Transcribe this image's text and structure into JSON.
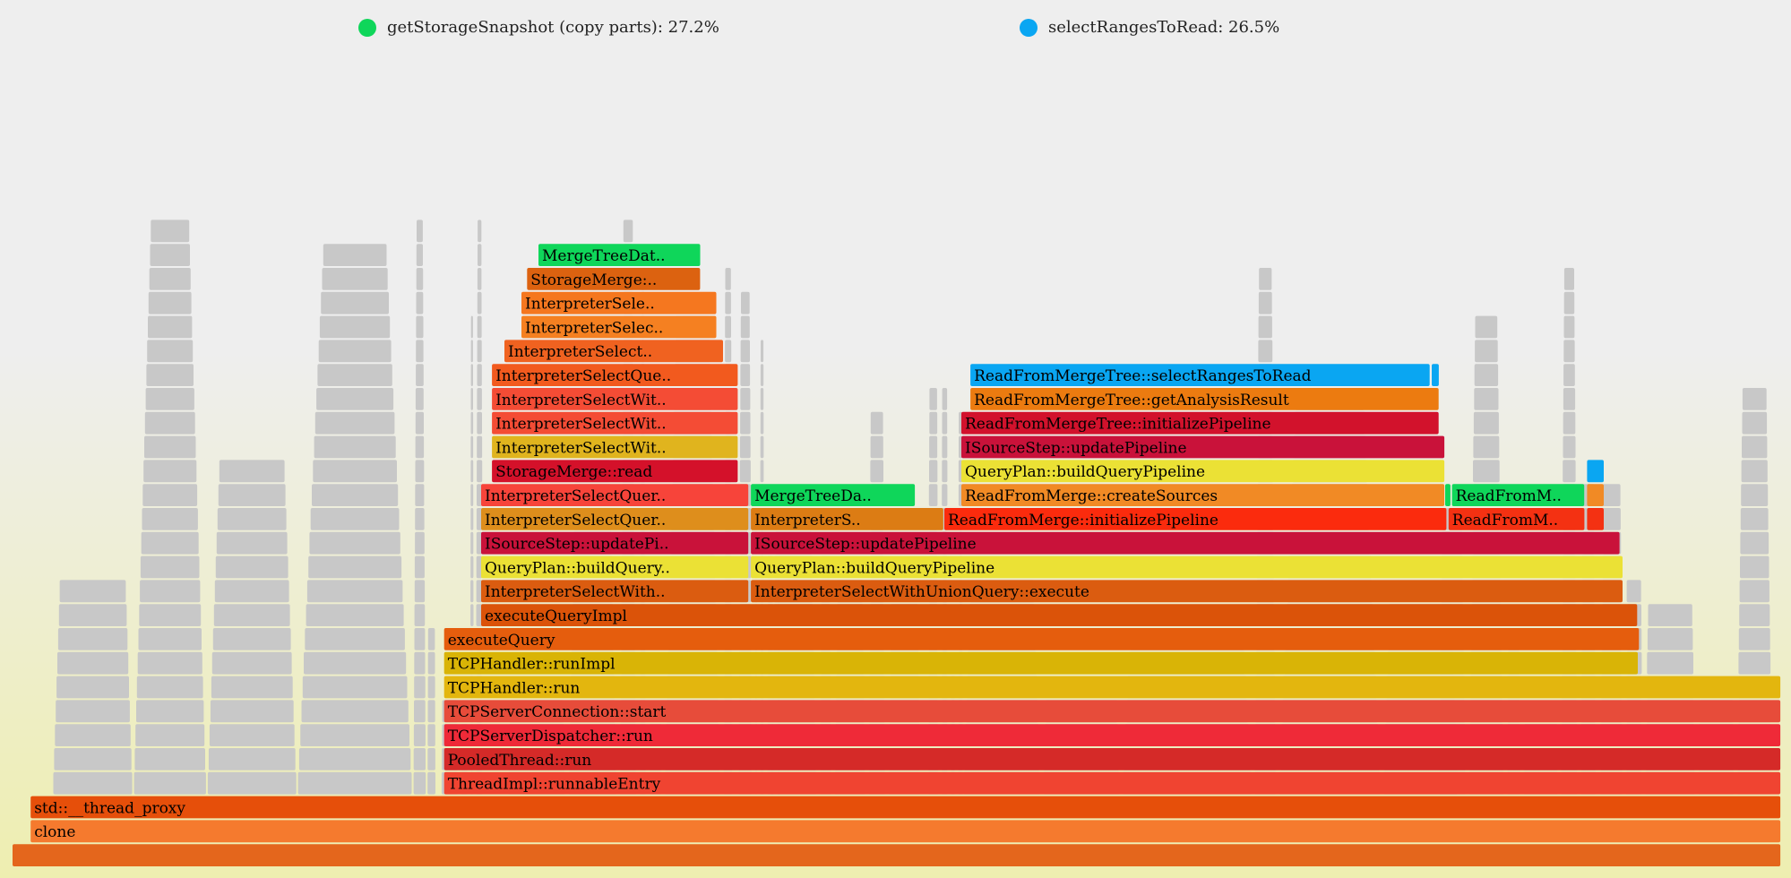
{
  "legend": [
    {
      "label": "getStorageSnapshot (copy parts): 27.2%",
      "color": "#0fd65a"
    },
    {
      "label": "selectRangesToRead: 26.5%",
      "color": "#0aa6f2"
    }
  ],
  "chart_data": {
    "type": "flamegraph",
    "x_range": [
      0,
      1
    ],
    "depth_count": 35,
    "frames": [
      {
        "name": "",
        "x": 0.0,
        "w": 0.9975,
        "d": 0,
        "color": "#e4661c"
      },
      {
        "name": "clone",
        "x": 0.0102,
        "w": 0.9873,
        "d": 1,
        "color": "#f57a2e"
      },
      {
        "name": "std::__thread_proxy",
        "x": 0.0102,
        "w": 0.9873,
        "d": 2,
        "color": "#e64f0a"
      },
      {
        "name": "ThreadImpl::runnableEntry",
        "x": 0.2434,
        "w": 0.7541,
        "d": 3,
        "color": "#f04431"
      },
      {
        "name": "PooledThread::run",
        "x": 0.2434,
        "w": 0.7541,
        "d": 4,
        "color": "#d52a28"
      },
      {
        "name": "TCPServerDispatcher::run",
        "x": 0.2434,
        "w": 0.7541,
        "d": 5,
        "color": "#ef2a38"
      },
      {
        "name": "TCPServerConnection::start",
        "x": 0.2434,
        "w": 0.7541,
        "d": 6,
        "color": "#e74c3a"
      },
      {
        "name": "TCPHandler::run",
        "x": 0.2434,
        "w": 0.7541,
        "d": 7,
        "color": "#e3b60e"
      },
      {
        "name": "TCPHandler::runImpl",
        "x": 0.2434,
        "w": 0.6737,
        "d": 8,
        "color": "#d9b406"
      },
      {
        "name": "executeQuery",
        "x": 0.2434,
        "w": 0.6744,
        "d": 9,
        "color": "#e55d0d"
      },
      {
        "name": "executeQueryImpl",
        "x": 0.2643,
        "w": 0.6525,
        "d": 10,
        "color": "#db5309"
      },
      {
        "name": "InterpreterSelectWith..",
        "x": 0.2643,
        "w": 0.1512,
        "d": 11,
        "color": "#db5c10"
      },
      {
        "name": "InterpreterSelectWithUnionQuery::execute",
        "x": 0.4164,
        "w": 0.4921,
        "d": 11,
        "color": "#db5c10"
      },
      {
        "name": "QueryPlan::buildQuery..",
        "x": 0.2643,
        "w": 0.1512,
        "d": 12,
        "color": "#ebe135"
      },
      {
        "name": "QueryPlan::buildQueryPipeline",
        "x": 0.4164,
        "w": 0.4921,
        "d": 12,
        "color": "#ebe135"
      },
      {
        "name": "ISourceStep::updatePi..",
        "x": 0.2643,
        "w": 0.1512,
        "d": 13,
        "color": "#c9123a"
      },
      {
        "name": "ISourceStep::updatePipeline",
        "x": 0.4164,
        "w": 0.4904,
        "d": 13,
        "color": "#c9123a"
      },
      {
        "name": "InterpreterSelectQuer..",
        "x": 0.2643,
        "w": 0.1512,
        "d": 14,
        "color": "#de8e1c"
      },
      {
        "name": "InterpreterS..",
        "x": 0.4164,
        "w": 0.109,
        "d": 14,
        "color": "#dc7c14"
      },
      {
        "name": "ReadFromMerge::initializePipeline",
        "x": 0.5255,
        "w": 0.2837,
        "d": 14,
        "color": "#fb2b0d"
      },
      {
        "name": "ReadFromM..",
        "x": 0.8099,
        "w": 0.0771,
        "d": 14,
        "color": "#f43112"
      },
      {
        "name": "",
        "x": 0.888,
        "w": 0.0099,
        "d": 14,
        "color": "#f43112"
      },
      {
        "name": "InterpreterSelectQuer..",
        "x": 0.2643,
        "w": 0.1512,
        "d": 15,
        "color": "#f7443a"
      },
      {
        "name": "MergeTreeDa..",
        "x": 0.4164,
        "w": 0.093,
        "d": 15,
        "color": "#0fd65a"
      },
      {
        "name": "ReadFromMerge::createSources",
        "x": 0.5351,
        "w": 0.2729,
        "d": 15,
        "color": "#f18a25"
      },
      {
        "name": "",
        "x": 0.808,
        "w": 0.0035,
        "d": 15,
        "color": "#0fd65a"
      },
      {
        "name": "ReadFromM..",
        "x": 0.8118,
        "w": 0.0751,
        "d": 15,
        "color": "#0fd65a"
      },
      {
        "name": "",
        "x": 0.888,
        "w": 0.0099,
        "d": 15,
        "color": "#f18a25"
      },
      {
        "name": "StorageMerge::read",
        "x": 0.2704,
        "w": 0.1391,
        "d": 16,
        "color": "#d4112a"
      },
      {
        "name": "QueryPlan::buildQueryPipeline",
        "x": 0.5351,
        "w": 0.2729,
        "d": 16,
        "color": "#ebe135"
      },
      {
        "name": "",
        "x": 0.888,
        "w": 0.0099,
        "d": 16,
        "color": "#0aa6f2"
      },
      {
        "name": "InterpreterSelectWit..",
        "x": 0.2704,
        "w": 0.1391,
        "d": 17,
        "color": "#e0b41e"
      },
      {
        "name": "ISourceStep::updatePipeline",
        "x": 0.5351,
        "w": 0.2729,
        "d": 17,
        "color": "#c9123a"
      },
      {
        "name": "InterpreterSelectWit..",
        "x": 0.2704,
        "w": 0.1391,
        "d": 18,
        "color": "#f44c35"
      },
      {
        "name": "ReadFromMergeTree::initializePipeline",
        "x": 0.5351,
        "w": 0.2697,
        "d": 18,
        "color": "#d2122c"
      },
      {
        "name": "InterpreterSelectWit..",
        "x": 0.2704,
        "w": 0.1391,
        "d": 19,
        "color": "#f44c35"
      },
      {
        "name": "ReadFromMergeTree::getAnalysisResult",
        "x": 0.5402,
        "w": 0.2646,
        "d": 19,
        "color": "#ec7b10"
      },
      {
        "name": "InterpreterSelectQue..",
        "x": 0.2704,
        "w": 0.1391,
        "d": 20,
        "color": "#f25a1e"
      },
      {
        "name": "ReadFromMergeTree::selectRangesToRead",
        "x": 0.5402,
        "w": 0.2595,
        "d": 20,
        "color": "#0aa6f2"
      },
      {
        "name": "",
        "x": 0.8004,
        "w": 0.0045,
        "d": 20,
        "color": "#0aa6f2"
      },
      {
        "name": "InterpreterSelect..",
        "x": 0.2774,
        "w": 0.1238,
        "d": 21,
        "color": "#f06220"
      },
      {
        "name": "InterpreterSelec..",
        "x": 0.287,
        "w": 0.1104,
        "d": 22,
        "color": "#f58021"
      },
      {
        "name": "InterpreterSele..",
        "x": 0.287,
        "w": 0.1104,
        "d": 23,
        "color": "#f5771f"
      },
      {
        "name": "StorageMerge:..",
        "x": 0.2902,
        "w": 0.0981,
        "d": 24,
        "color": "#dc6210"
      },
      {
        "name": "MergeTreeDat..",
        "x": 0.2966,
        "w": 0.0917,
        "d": 25,
        "color": "#0fd65a"
      }
    ],
    "gray_regions": [
      {
        "x": 0.023,
        "w": 0.216,
        "top": 0.18
      },
      {
        "x": 0.242,
        "w": 0.024,
        "top": 0.05
      },
      {
        "x": 0.279,
        "w": 0.128,
        "top": 0.1
      },
      {
        "x": 0.409,
        "w": 0.025,
        "top": 0.07
      },
      {
        "x": 0.427,
        "w": 0.087,
        "top": 0.36
      },
      {
        "x": 0.516,
        "w": 0.021,
        "top": 0.08
      },
      {
        "x": 0.536,
        "w": 0.28,
        "top": 0.16
      },
      {
        "x": 0.804,
        "w": 0.09,
        "top": 0.07
      },
      {
        "x": 0.895,
        "w": 0.098,
        "top": 0.2
      }
    ]
  }
}
